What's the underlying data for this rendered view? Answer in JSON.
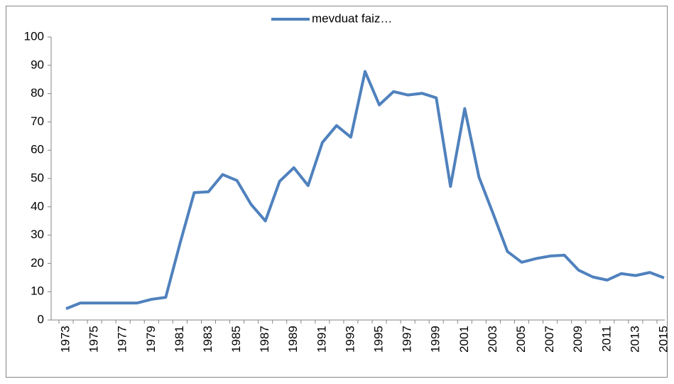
{
  "chart_data": {
    "type": "line",
    "categories": [
      "1973",
      null,
      "1975",
      null,
      "1977",
      null,
      "1979",
      null,
      "1981",
      null,
      "1983",
      null,
      "1985",
      null,
      "1987",
      null,
      "1989",
      null,
      "1991",
      null,
      "1993",
      null,
      "1995",
      null,
      "1997",
      null,
      "1999",
      null,
      "2001",
      null,
      "2003",
      null,
      "2005",
      null,
      "2007",
      null,
      "2009",
      null,
      "2011",
      null,
      "2013",
      null,
      "2015"
    ],
    "series": [
      {
        "name": "mevduat faiz…",
        "color": "#4f81bd",
        "values": [
          4,
          6,
          6,
          6,
          6,
          6,
          7.3,
          8,
          27,
          45,
          45.3,
          51.4,
          49.3,
          40.8,
          35,
          49,
          53.8,
          47.5,
          62.7,
          68.7,
          64.6,
          87.8,
          76,
          80.7,
          79.5,
          80.1,
          78.5,
          47.2,
          74.7,
          50.5,
          37.5,
          24.2,
          20.4,
          21.7,
          22.6,
          22.9,
          17.6,
          15.2,
          14.1,
          16.4,
          15.7,
          16.8,
          14.9
        ]
      }
    ],
    "ylim": [
      0,
      100
    ],
    "yticks": [
      0,
      10,
      20,
      30,
      40,
      50,
      60,
      70,
      80,
      90,
      100
    ],
    "grid": false,
    "legend": "top"
  }
}
